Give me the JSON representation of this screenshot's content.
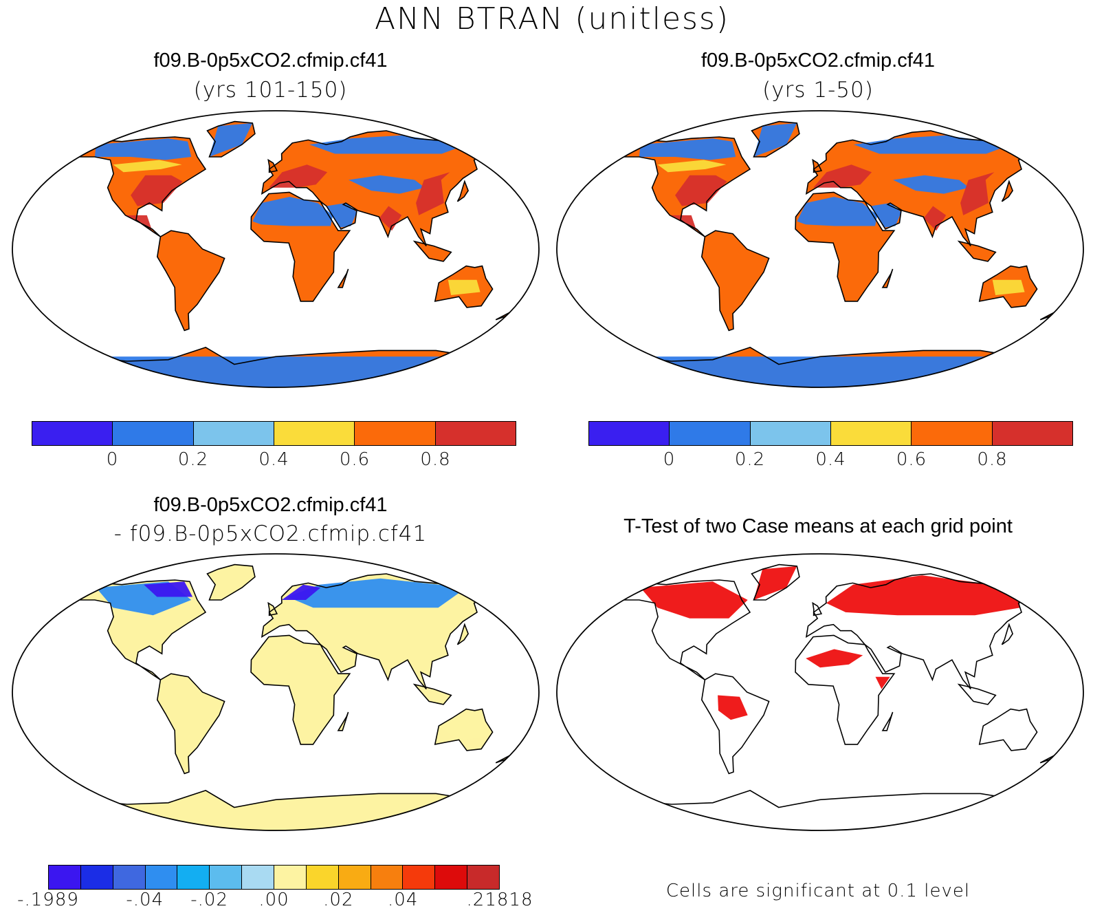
{
  "figure": {
    "title": "ANN  BTRAN (unitless)"
  },
  "panels": {
    "top_left": {
      "case": "f09.B-0p5xCO2.cfmip.cf41",
      "years": "(yrs 101-150)"
    },
    "top_right": {
      "case": "f09.B-0p5xCO2.cfmip.cf41",
      "years": "(yrs 1-50)"
    },
    "bottom_left": {
      "case": "f09.B-0p5xCO2.cfmip.cf41",
      "minus_case": "-  f09.B-0p5xCO2.cfmip.cf41"
    },
    "bottom_right": {
      "title": "T-Test of two Case means at each grid point",
      "note": "Cells are significant at 0.1 level"
    }
  },
  "colorbars": {
    "btran": {
      "colors": [
        "#3a1ff0",
        "#2f7ae8",
        "#7cc4ec",
        "#fadc3a",
        "#fb6a0a",
        "#d6302c"
      ],
      "ticks": [
        "0",
        "0.2",
        "0.4",
        "0.6",
        "0.8"
      ]
    },
    "difference": {
      "colors": [
        "#3b16f0",
        "#1b2de6",
        "#3f68e0",
        "#2f8ef0",
        "#13aef2",
        "#5cbcee",
        "#a9daf2",
        "#fdf3a2",
        "#fad52b",
        "#f9ab13",
        "#f77f0e",
        "#f53a0b",
        "#dd0b0b",
        "#c82a2a"
      ],
      "ticks": [
        "-.1989",
        "-.04",
        "-.02",
        ".00",
        ".02",
        ".04",
        ".21818"
      ]
    }
  },
  "map_colors": {
    "land_wet": "#d6302c",
    "land_mid": "#fb6a0a",
    "land_moist": "#fadc3a",
    "land_dry": "#2f7ae8",
    "land_vdry": "#7cc4ec",
    "diff_neutral": "#fdf3a2",
    "diff_neg": "#2f8ef0",
    "diff_negstrong": "#3b16f0",
    "sig": "#ee1010"
  }
}
